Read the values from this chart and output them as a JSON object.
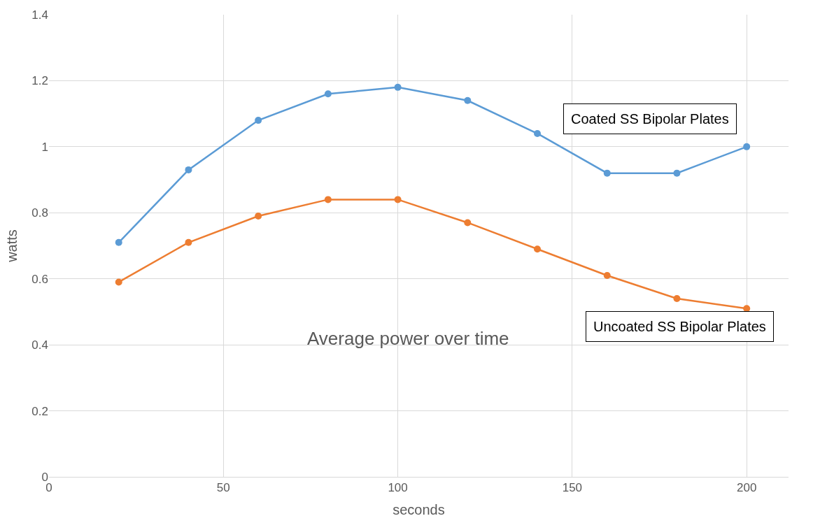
{
  "chart_data": {
    "type": "line",
    "title": "Average power over time",
    "xlabel": "seconds",
    "ylabel": "watts",
    "x": [
      20,
      40,
      60,
      80,
      100,
      120,
      140,
      160,
      180,
      200
    ],
    "series": [
      {
        "name": "Coated SS Bipolar Plates",
        "color": "#5b9bd5",
        "values": [
          0.71,
          0.93,
          1.08,
          1.16,
          1.18,
          1.14,
          1.04,
          0.92,
          0.92,
          1.0
        ]
      },
      {
        "name": "Uncoated SS Bipolar Plates",
        "color": "#ed7d31",
        "values": [
          0.59,
          0.71,
          0.79,
          0.84,
          0.84,
          0.77,
          0.69,
          0.61,
          0.54,
          0.51
        ]
      }
    ],
    "xlim": [
      0,
      212
    ],
    "xticks": [
      0,
      50,
      100,
      150,
      200
    ],
    "ylim": [
      0,
      1.4
    ],
    "yticks": [
      0,
      0.2,
      0.4,
      0.6,
      0.8,
      1,
      1.2,
      1.4
    ],
    "grid": true,
    "marker": "circle",
    "line_style": "solid",
    "legend": false
  }
}
